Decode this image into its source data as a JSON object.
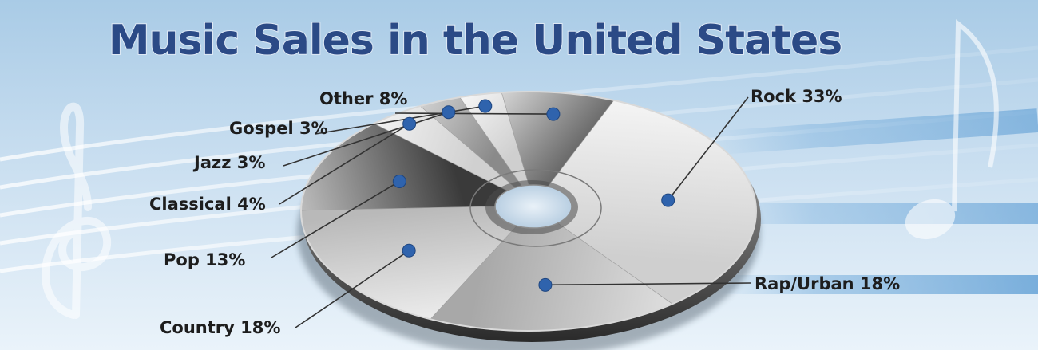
{
  "chart_data": {
    "type": "pie",
    "title": "Music Sales in the United States",
    "slices": [
      {
        "label": "Rock",
        "value": 33,
        "display": "Rock 33%"
      },
      {
        "label": "Rap/Urban",
        "value": 18,
        "display": "Rap/Urban 18%"
      },
      {
        "label": "Country",
        "value": 18,
        "display": "Country 18%"
      },
      {
        "label": "Pop",
        "value": 13,
        "display": "Pop 13%"
      },
      {
        "label": "Classical",
        "value": 4,
        "display": "Classical 4%"
      },
      {
        "label": "Jazz",
        "value": 3,
        "display": "Jazz 3%"
      },
      {
        "label": "Gospel",
        "value": 3,
        "display": "Gospel 3%"
      },
      {
        "label": "Other",
        "value": 8,
        "display": "Other 8%"
      }
    ],
    "legend": "none",
    "colors": {
      "title": "#2b4a86",
      "title_outline": "#dfe9f5",
      "marker": "#2f63ad",
      "leader": "#333333",
      "background_top": "#a9cbe6",
      "background_bottom": "#eaf3fa"
    }
  }
}
